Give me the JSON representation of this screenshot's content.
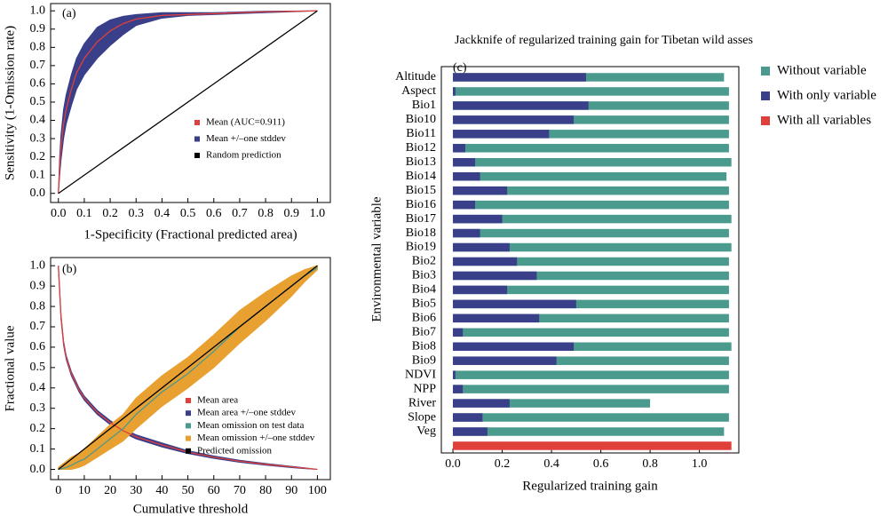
{
  "chart_data": [
    {
      "type": "line",
      "annotation": "(a)",
      "xlabel": "1-Specificity (Fractional predicted area)",
      "ylabel": "Sensitivity (1-Omission rate)",
      "x": [
        0,
        0.005,
        0.01,
        0.02,
        0.03,
        0.05,
        0.07,
        0.1,
        0.15,
        0.2,
        0.25,
        0.3,
        0.4,
        0.5,
        0.6,
        0.8,
        1.0
      ],
      "series": [
        {
          "name": "Mean (AUC=0.911)",
          "kind": "line",
          "color": "#e0403a",
          "values": [
            0,
            0.15,
            0.25,
            0.38,
            0.46,
            0.57,
            0.66,
            0.74,
            0.83,
            0.89,
            0.93,
            0.955,
            0.975,
            0.98,
            0.985,
            0.995,
            1.0
          ]
        },
        {
          "name": "Mean +/–one stddev",
          "kind": "band",
          "color": "#3a3f8a",
          "lower": [
            0,
            0.1,
            0.18,
            0.3,
            0.38,
            0.48,
            0.57,
            0.65,
            0.74,
            0.81,
            0.87,
            0.92,
            0.96,
            0.975,
            0.98,
            0.99,
            1.0
          ],
          "upper": [
            0,
            0.2,
            0.32,
            0.46,
            0.54,
            0.65,
            0.74,
            0.82,
            0.91,
            0.95,
            0.97,
            0.98,
            0.99,
            0.99,
            0.99,
            0.998,
            1.0
          ]
        },
        {
          "name": "Random prediction",
          "kind": "line",
          "color": "#000000",
          "x": [
            0,
            1
          ],
          "values": [
            0,
            1
          ]
        }
      ],
      "xlim": [
        -0.03,
        1.05
      ],
      "ylim": [
        -0.05,
        1.04
      ],
      "xticks": [
        {
          "value": 0,
          "label": "0.0"
        },
        0.1,
        0.2,
        0.3,
        0.4,
        0.5,
        0.6,
        0.7,
        0.8,
        0.9,
        {
          "value": 1,
          "label": "1.0"
        }
      ],
      "yticks": [
        {
          "value": 0,
          "label": "0.0"
        },
        0.1,
        0.2,
        0.3,
        0.4,
        0.5,
        0.6,
        0.7,
        0.8,
        0.9,
        {
          "value": 1,
          "label": "1.0"
        }
      ],
      "legend": "lower right"
    },
    {
      "type": "line",
      "annotation": "(b)",
      "xlabel": "Cumulative threshold",
      "ylabel": "Fractional value",
      "x": [
        0,
        1,
        2,
        3,
        5,
        8,
        10,
        15,
        20,
        25,
        30,
        40,
        50,
        60,
        70,
        80,
        90,
        95,
        100
      ],
      "series": [
        {
          "name": "Mean area",
          "kind": "line",
          "color": "#e0403a",
          "values": [
            1.0,
            0.75,
            0.62,
            0.55,
            0.47,
            0.39,
            0.35,
            0.28,
            0.23,
            0.19,
            0.16,
            0.12,
            0.085,
            0.06,
            0.04,
            0.025,
            0.012,
            0.006,
            0
          ]
        },
        {
          "name": "Mean area +/–one stddev",
          "kind": "band",
          "color": "#3a3f8a",
          "lower": [
            0.99,
            0.74,
            0.61,
            0.54,
            0.46,
            0.38,
            0.34,
            0.27,
            0.22,
            0.18,
            0.15,
            0.11,
            0.078,
            0.054,
            0.035,
            0.021,
            0.009,
            0.004,
            0
          ],
          "upper": [
            1.0,
            0.76,
            0.63,
            0.56,
            0.48,
            0.4,
            0.36,
            0.29,
            0.24,
            0.2,
            0.17,
            0.13,
            0.092,
            0.066,
            0.045,
            0.029,
            0.015,
            0.008,
            0
          ]
        },
        {
          "name": "Mean omission on test data",
          "kind": "line",
          "color": "#4a9a8e",
          "values": [
            0,
            0.003,
            0.006,
            0.01,
            0.02,
            0.04,
            0.05,
            0.1,
            0.15,
            0.2,
            0.27,
            0.38,
            0.47,
            0.58,
            0.7,
            0.8,
            0.9,
            0.95,
            0.99
          ]
        },
        {
          "name": "Mean omission +/–one stddev",
          "kind": "band",
          "color": "#e8a030",
          "lower": [
            0,
            0,
            0,
            0,
            0,
            0.01,
            0.02,
            0.06,
            0.1,
            0.14,
            0.2,
            0.31,
            0.4,
            0.5,
            0.62,
            0.73,
            0.85,
            0.92,
            0.98
          ],
          "upper": [
            0.01,
            0.02,
            0.03,
            0.04,
            0.06,
            0.08,
            0.1,
            0.16,
            0.22,
            0.27,
            0.35,
            0.46,
            0.55,
            0.66,
            0.78,
            0.87,
            0.95,
            0.98,
            1.0
          ]
        },
        {
          "name": "Predicted omission",
          "kind": "line",
          "color": "#000000",
          "x": [
            0,
            100
          ],
          "values": [
            0,
            1
          ]
        }
      ],
      "xlim": [
        -3,
        105
      ],
      "ylim": [
        -0.05,
        1.04
      ],
      "xticks": [
        0,
        10,
        20,
        30,
        40,
        50,
        60,
        70,
        80,
        90,
        100
      ],
      "yticks": [
        {
          "value": 0,
          "label": "0.0"
        },
        0.1,
        0.2,
        0.3,
        0.4,
        0.5,
        0.6,
        0.7,
        0.8,
        0.9,
        {
          "value": 1,
          "label": "1.0"
        }
      ],
      "legend": "lower center"
    },
    {
      "type": "barh",
      "annotation": "(c)",
      "title": "Jackknife of regularized training gain for  Tibetan wild asses",
      "xlabel": "Regularized training gain",
      "ylabel": "Environmental variable",
      "categories": [
        "Altitude",
        "Aspect",
        "Bio1",
        "Bio10",
        "Bio11",
        "Bio12",
        "Bio13",
        "Bio14",
        "Bio15",
        "Bio16",
        "Bio17",
        "Bio18",
        "Bio19",
        "Bio2",
        "Bio3",
        "Bio4",
        "Bio5",
        "Bio6",
        "Bio7",
        "Bio8",
        "Bio9",
        "NDVI",
        "NPP",
        "River",
        "Slope",
        "Veg",
        null
      ],
      "series": [
        {
          "name": "Without variable",
          "color": "#4a9a8e",
          "values": [
            1.1,
            1.12,
            1.12,
            1.12,
            1.12,
            1.12,
            1.13,
            1.11,
            1.12,
            1.12,
            1.13,
            1.12,
            1.13,
            1.12,
            1.12,
            1.12,
            1.12,
            1.12,
            1.12,
            1.13,
            1.12,
            1.12,
            1.12,
            0.8,
            1.12,
            1.1,
            null
          ]
        },
        {
          "name": "With only variable",
          "color": "#3a3f8a",
          "values": [
            0.54,
            0.01,
            0.55,
            0.49,
            0.39,
            0.05,
            0.09,
            0.11,
            0.22,
            0.09,
            0.2,
            0.11,
            0.23,
            0.26,
            0.34,
            0.22,
            0.5,
            0.35,
            0.04,
            0.49,
            0.42,
            0.01,
            0.04,
            0.23,
            0.12,
            0.14,
            null
          ]
        },
        {
          "name": "With all variables",
          "color": "#e0403a",
          "values": [
            null,
            null,
            null,
            null,
            null,
            null,
            null,
            null,
            null,
            null,
            null,
            null,
            null,
            null,
            null,
            null,
            null,
            null,
            null,
            null,
            null,
            null,
            null,
            null,
            null,
            null,
            1.13
          ]
        }
      ],
      "xlim": [
        -0.047,
        1.16
      ],
      "xticks": [
        {
          "value": 0,
          "label": "0.0"
        },
        0.2,
        0.4,
        0.6,
        0.8,
        {
          "value": 1,
          "label": "1.0"
        }
      ],
      "legend": "outside right"
    }
  ]
}
